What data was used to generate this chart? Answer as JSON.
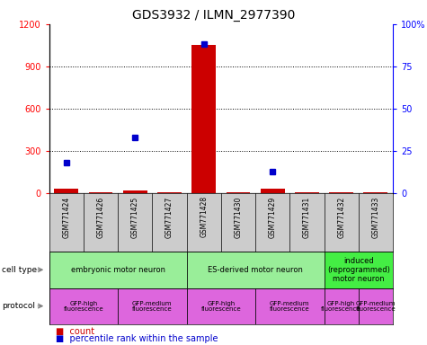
{
  "title": "GDS3932 / ILMN_2977390",
  "samples": [
    "GSM771424",
    "GSM771426",
    "GSM771425",
    "GSM771427",
    "GSM771428",
    "GSM771430",
    "GSM771429",
    "GSM771431",
    "GSM771432",
    "GSM771433"
  ],
  "counts": [
    30,
    5,
    20,
    5,
    1050,
    5,
    30,
    5,
    5,
    5
  ],
  "percentiles": [
    18,
    null,
    33,
    null,
    88,
    null,
    13,
    null,
    null,
    null
  ],
  "ylim_left": [
    0,
    1200
  ],
  "ylim_right": [
    0,
    100
  ],
  "yticks_left": [
    0,
    300,
    600,
    900,
    1200
  ],
  "yticks_right": [
    0,
    25,
    50,
    75,
    100
  ],
  "ytick_labels_right": [
    "0",
    "25",
    "50",
    "75",
    "100%"
  ],
  "bar_color": "#cc0000",
  "dot_color": "#0000cc",
  "cell_type_groups": [
    {
      "label": "embryonic motor neuron",
      "start": 0,
      "end": 4,
      "color": "#99ee99"
    },
    {
      "label": "ES-derived motor neuron",
      "start": 4,
      "end": 8,
      "color": "#99ee99"
    },
    {
      "label": "induced\n(reprogrammed)\nmotor neuron",
      "start": 8,
      "end": 10,
      "color": "#44ee44"
    }
  ],
  "protocol_groups": [
    {
      "label": "GFP-high\nfluorescence",
      "start": 0,
      "end": 2,
      "color": "#dd66dd"
    },
    {
      "label": "GFP-medium\nfluorescence",
      "start": 2,
      "end": 4,
      "color": "#dd66dd"
    },
    {
      "label": "GFP-high\nfluorescence",
      "start": 4,
      "end": 6,
      "color": "#dd66dd"
    },
    {
      "label": "GFP-medium\nfluorescence",
      "start": 6,
      "end": 8,
      "color": "#dd66dd"
    },
    {
      "label": "GFP-high\nfluorescence",
      "start": 8,
      "end": 9,
      "color": "#dd66dd"
    },
    {
      "label": "GFP-medium\nfluorescence",
      "start": 9,
      "end": 10,
      "color": "#dd66dd"
    }
  ],
  "sample_bg_color": "#cccccc",
  "fig_bg": "#ffffff",
  "label_fontsize": 7,
  "tick_fontsize": 7,
  "title_fontsize": 10
}
